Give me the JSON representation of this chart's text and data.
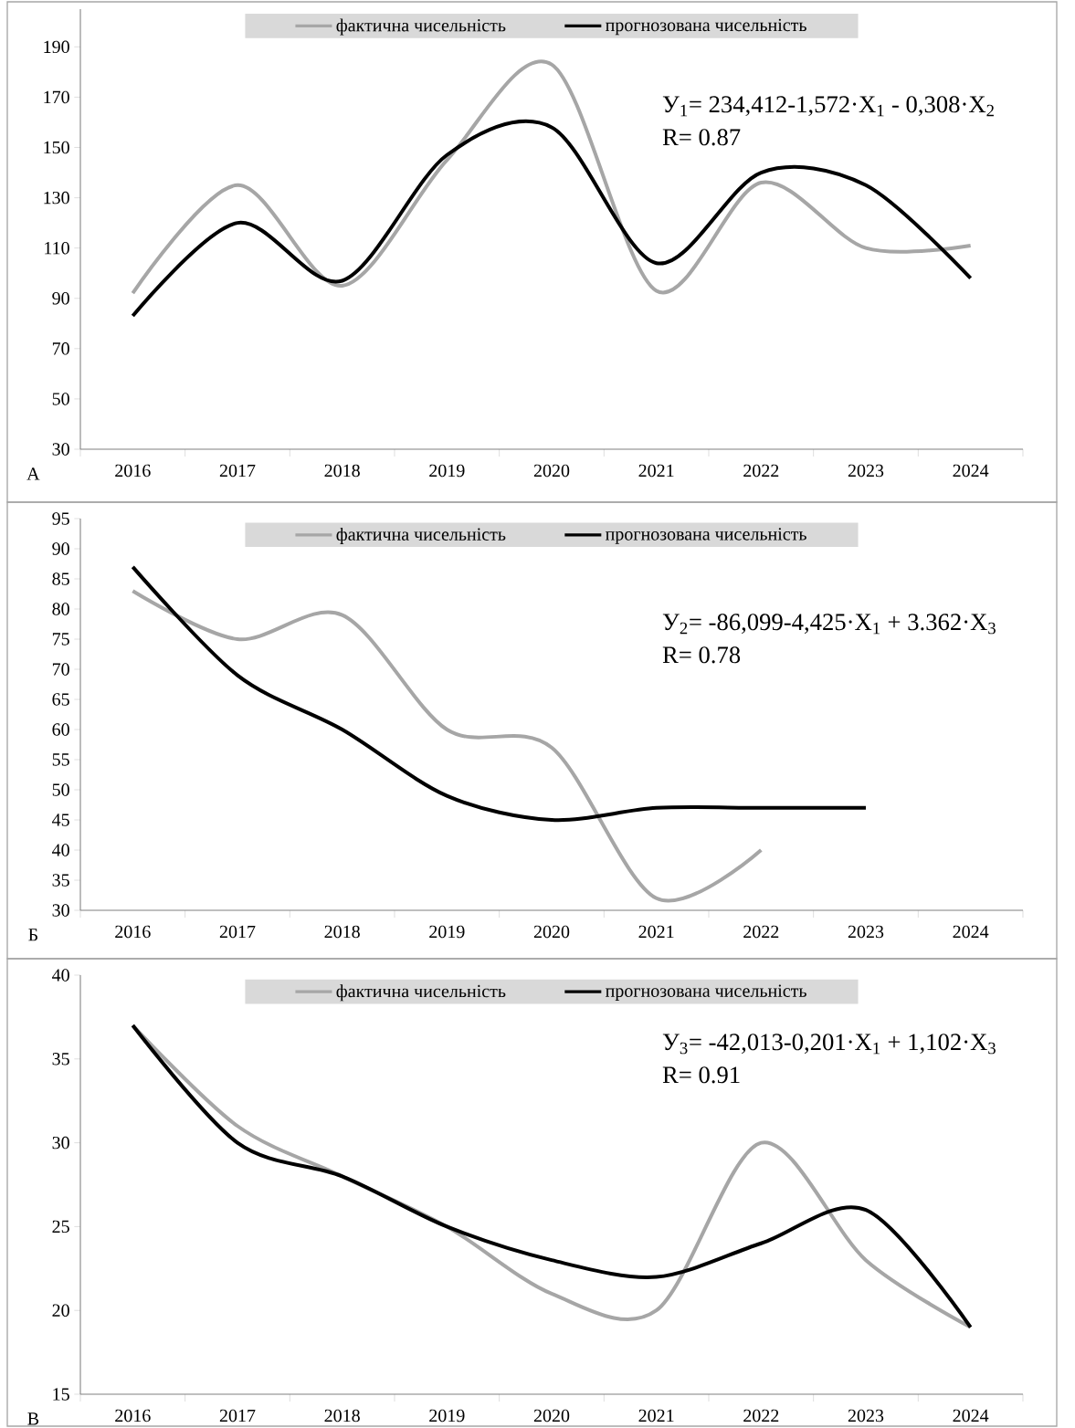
{
  "chart_data": [
    {
      "type": "line",
      "categories": [
        "2016",
        "2017",
        "2018",
        "2019",
        "2020",
        "2021",
        "2022",
        "2023",
        "2024"
      ],
      "ylim": [
        30,
        205
      ],
      "yticks": [
        30,
        50,
        70,
        90,
        110,
        130,
        150,
        170,
        190
      ],
      "legend": "top",
      "series": [
        {
          "name": "фактична чисельність",
          "color": "#a6a6a6",
          "values": [
            92,
            135,
            95,
            145,
            183,
            93,
            136,
            110,
            111
          ]
        },
        {
          "name": "прогнозована чисельність",
          "color": "#000000",
          "values": [
            83,
            120,
            97,
            147,
            158,
            104,
            140,
            135,
            98
          ]
        }
      ],
      "annotations": [
        "У$_{1}$= 234,412-1,572·Х$_{1}$ - 0,308·Х$_{2}$",
        "R= 0.87",
        "А"
      ]
    },
    {
      "type": "line",
      "categories": [
        "2016",
        "2017",
        "2018",
        "2019",
        "2020",
        "2021",
        "2022",
        "2023",
        "2024"
      ],
      "ylim": [
        30,
        95
      ],
      "yticks": [
        30,
        35,
        40,
        45,
        50,
        55,
        60,
        65,
        70,
        75,
        80,
        85,
        90,
        95
      ],
      "legend": "top",
      "series": [
        {
          "name": "фактична чисельність",
          "color": "#a6a6a6",
          "values": [
            83,
            75,
            79,
            60,
            57,
            32,
            40,
            null,
            null
          ]
        },
        {
          "name": "прогнозована чисельність",
          "color": "#000000",
          "values": [
            87,
            69,
            60,
            49,
            45,
            47,
            47,
            47,
            null
          ]
        }
      ],
      "annotations": [
        "У$_{2}$= -86,099-4,425·Х$_{1}$ + 3.362·Х$_{3}$",
        "R= 0.78",
        "Б"
      ]
    },
    {
      "type": "line",
      "categories": [
        "2016",
        "2017",
        "2018",
        "2019",
        "2020",
        "2021",
        "2022",
        "2023",
        "2024"
      ],
      "ylim": [
        15,
        40
      ],
      "yticks": [
        15,
        20,
        25,
        30,
        35,
        40
      ],
      "legend": "top",
      "series": [
        {
          "name": "фактична чисельність",
          "color": "#a6a6a6",
          "values": [
            37,
            31,
            28,
            25,
            21,
            20,
            30,
            23,
            19
          ]
        },
        {
          "name": "прогнозована чисельність",
          "color": "#000000",
          "values": [
            37,
            30,
            28,
            25,
            23,
            22,
            24,
            26,
            19
          ]
        }
      ],
      "annotations": [
        "У$_{3}$= -42,013-0,201·Х$_{1}$ + 1,102·Х$_{3}$",
        "R= 0.91",
        "В"
      ]
    }
  ]
}
